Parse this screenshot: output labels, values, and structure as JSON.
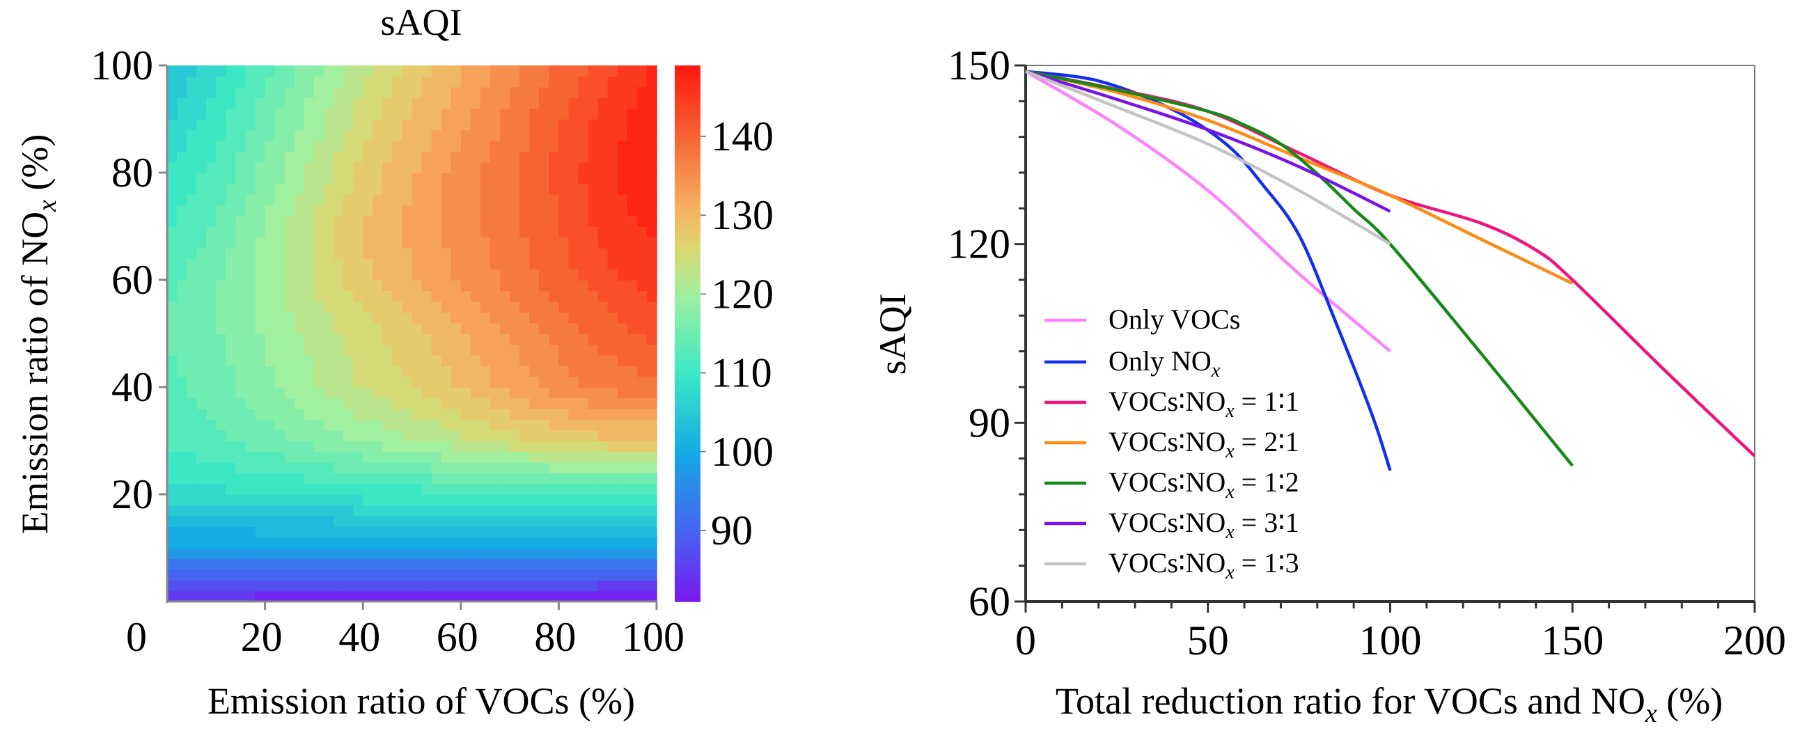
{
  "chart_data": [
    {
      "type": "heatmap",
      "title": "sAQI",
      "xlabel": {
        "main": "Emission ratio of VOCs (%)"
      },
      "ylabel": {
        "main": "Emission ratio of NO",
        "sub": "x",
        "suffix": " (%)"
      },
      "x": [
        0,
        10,
        20,
        30,
        40,
        50,
        60,
        70,
        80,
        90,
        100
      ],
      "y": [
        0,
        10,
        20,
        30,
        40,
        50,
        60,
        70,
        80,
        90,
        100
      ],
      "z": [
        [
          83,
          83,
          82,
          82,
          82,
          82,
          82,
          82,
          82,
          81,
          81
        ],
        [
          98,
          98,
          98,
          98,
          98,
          98,
          98,
          98,
          98,
          98,
          98
        ],
        [
          108,
          108,
          109,
          109,
          110,
          110,
          111,
          111,
          111,
          111,
          111
        ],
        [
          112,
          113,
          115,
          117,
          119,
          121,
          123,
          125,
          127,
          128,
          128
        ],
        [
          113,
          115,
          118,
          121,
          124,
          126,
          129,
          132,
          135,
          137,
          138
        ],
        [
          114,
          116,
          119,
          122,
          125,
          128,
          131,
          134,
          137,
          140,
          142
        ],
        [
          113,
          116,
          120,
          124,
          128,
          131,
          134,
          137,
          140,
          143,
          145
        ],
        [
          111,
          114,
          119,
          124,
          129,
          132,
          135,
          138,
          141,
          145,
          147
        ],
        [
          109,
          112,
          117,
          122,
          127,
          131,
          135,
          138,
          142,
          146,
          148
        ],
        [
          106,
          110,
          115,
          120,
          125,
          129,
          133,
          137,
          141,
          145,
          148
        ],
        [
          104,
          108,
          113,
          118,
          123,
          127,
          131,
          135,
          139,
          143,
          147
        ]
      ],
      "xlim": [
        0,
        100
      ],
      "ylim": [
        0,
        100
      ],
      "xticks": [
        "0",
        "20",
        "40",
        "60",
        "80",
        "100"
      ],
      "yticks": [
        "20",
        "40",
        "60",
        "80",
        "100"
      ],
      "colorbar": {
        "range": [
          81,
          149
        ],
        "ticks": [
          "90",
          "100",
          "110",
          "120",
          "130",
          "140"
        ],
        "colormap": "rainbow"
      }
    },
    {
      "type": "line",
      "title": "",
      "xlabel": {
        "main": "Total reduction ratio for VOCs and NO",
        "sub": "x",
        "suffix": " (%)"
      },
      "ylabel": {
        "main": "sAQI"
      },
      "xlim": [
        0,
        200
      ],
      "ylim": [
        60,
        150
      ],
      "xticks": [
        "0",
        "50",
        "100",
        "150",
        "200"
      ],
      "yticks": [
        "60",
        "90",
        "120",
        "150"
      ],
      "legend_position": "bottom-left",
      "series": [
        {
          "name": "Only VOCs",
          "label": {
            "main": "Only VOCs",
            "sub": "",
            "suffix": ""
          },
          "color": "#ff80ff",
          "x": [
            0,
            25,
            50,
            75,
            100
          ],
          "y": [
            149,
            140,
            129,
            115,
            102
          ]
        },
        {
          "name": "Only NOx",
          "label": {
            "main": "Only NO",
            "sub": "x",
            "suffix": ""
          },
          "color": "#1030f0",
          "x": [
            0,
            20,
            40,
            55,
            65,
            75,
            85,
            95,
            100
          ],
          "y": [
            149,
            147.4,
            142.7,
            136.8,
            130,
            121.5,
            107,
            91.4,
            82
          ]
        },
        {
          "name": "VOCs:NOx = 1:1",
          "label": {
            "main": "VOCs∶NO",
            "sub": "x",
            "suffix": " = 1∶1"
          },
          "color": "#f0147a",
          "x": [
            0,
            25,
            50,
            75,
            100,
            125,
            140,
            150,
            175,
            200
          ],
          "y": [
            149,
            146,
            142.3,
            135.3,
            128.2,
            123.5,
            119,
            114,
            99,
            84.4
          ]
        },
        {
          "name": "VOCs:NOx = 2:1",
          "label": {
            "main": "VOCs∶NO",
            "sub": "x",
            "suffix": " = 2∶1"
          },
          "color": "#ff8a14",
          "x": [
            0,
            25,
            50,
            75,
            100,
            125,
            150
          ],
          "y": [
            149,
            145.5,
            140.8,
            134.5,
            128.2,
            120.8,
            113.4
          ]
        },
        {
          "name": "VOCs:NOx = 1:2",
          "label": {
            "main": "VOCs∶NO",
            "sub": "x",
            "suffix": " = 1∶2"
          },
          "color": "#168a16",
          "x": [
            0,
            25,
            50,
            60,
            70,
            80,
            90,
            100,
            125,
            150
          ],
          "y": [
            149,
            145.9,
            142.3,
            140,
            136.8,
            131.8,
            125.9,
            120,
            101.6,
            82.8
          ]
        },
        {
          "name": "VOCs:NOx = 3:1",
          "label": {
            "main": "VOCs∶NO",
            "sub": "x",
            "suffix": " = 3∶1"
          },
          "color": "#7a14e6",
          "x": [
            0,
            25,
            50,
            75,
            100
          ],
          "y": [
            149,
            144.3,
            139.2,
            133,
            125.5
          ]
        },
        {
          "name": "VOCs:NOx = 1:3",
          "label": {
            "main": "VOCs∶NO",
            "sub": "x",
            "suffix": " = 1∶3"
          },
          "color": "#c4c4c4",
          "x": [
            0,
            25,
            50,
            75,
            100
          ],
          "y": [
            149,
            143,
            136.8,
            129,
            120
          ]
        }
      ]
    }
  ]
}
